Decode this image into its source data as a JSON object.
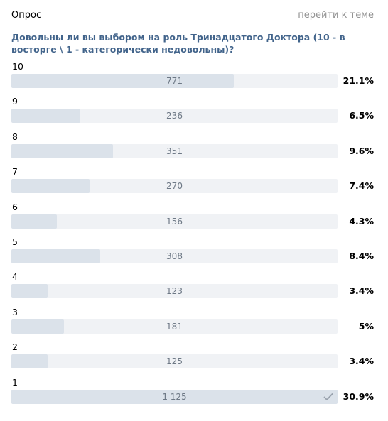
{
  "header": {
    "poll_label": "Опрос",
    "goto_topic": "перейти к теме"
  },
  "question": "Довольны ли вы выбором на роль Тринадцатого Доктора (10 - в восторге \\ 1 - категорически недовольны)?",
  "options": [
    {
      "label": "10",
      "count": "771",
      "percent": "21.1%",
      "fraction": 0.211,
      "voted": false
    },
    {
      "label": "9",
      "count": "236",
      "percent": "6.5%",
      "fraction": 0.065,
      "voted": false
    },
    {
      "label": "8",
      "count": "351",
      "percent": "9.6%",
      "fraction": 0.096,
      "voted": false
    },
    {
      "label": "7",
      "count": "270",
      "percent": "7.4%",
      "fraction": 0.074,
      "voted": false
    },
    {
      "label": "6",
      "count": "156",
      "percent": "4.3%",
      "fraction": 0.043,
      "voted": false
    },
    {
      "label": "5",
      "count": "308",
      "percent": "8.4%",
      "fraction": 0.084,
      "voted": false
    },
    {
      "label": "4",
      "count": "123",
      "percent": "3.4%",
      "fraction": 0.034,
      "voted": false
    },
    {
      "label": "3",
      "count": "181",
      "percent": "5%",
      "fraction": 0.05,
      "voted": false
    },
    {
      "label": "2",
      "count": "125",
      "percent": "3.4%",
      "fraction": 0.034,
      "voted": false
    },
    {
      "label": "1",
      "count": "1 125",
      "percent": "30.9%",
      "fraction": 0.309,
      "voted": true
    }
  ],
  "icons": {
    "voted_marker": "check-icon"
  },
  "colors": {
    "question_text": "#42648b",
    "bar_track": "#f0f2f5",
    "bar_fill": "#dbe2ea",
    "count_text": "#6d7885",
    "link_text": "#939393",
    "check": "#99a2ad"
  }
}
